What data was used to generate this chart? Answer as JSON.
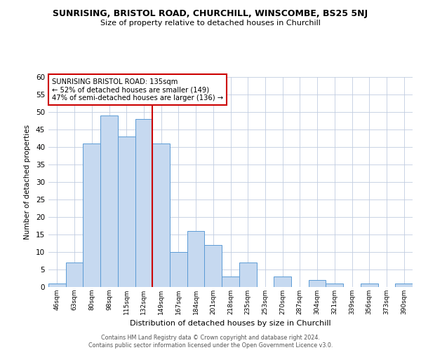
{
  "title": "SUNRISING, BRISTOL ROAD, CHURCHILL, WINSCOMBE, BS25 5NJ",
  "subtitle": "Size of property relative to detached houses in Churchill",
  "xlabel": "Distribution of detached houses by size in Churchill",
  "ylabel": "Number of detached properties",
  "bar_labels": [
    "46sqm",
    "63sqm",
    "80sqm",
    "98sqm",
    "115sqm",
    "132sqm",
    "149sqm",
    "167sqm",
    "184sqm",
    "201sqm",
    "218sqm",
    "235sqm",
    "253sqm",
    "270sqm",
    "287sqm",
    "304sqm",
    "321sqm",
    "339sqm",
    "356sqm",
    "373sqm",
    "390sqm"
  ],
  "bar_values": [
    1,
    7,
    41,
    49,
    43,
    48,
    41,
    10,
    16,
    12,
    3,
    7,
    0,
    3,
    0,
    2,
    1,
    0,
    1,
    0,
    1
  ],
  "bar_color": "#c6d9f0",
  "bar_edge_color": "#5b9bd5",
  "vline_x": 5.5,
  "vline_color": "#cc0000",
  "annotation_title": "SUNRISING BRISTOL ROAD: 135sqm",
  "annotation_line1": "← 52% of detached houses are smaller (149)",
  "annotation_line2": "47% of semi-detached houses are larger (136) →",
  "annotation_box_color": "#cc0000",
  "annotation_box_fill": "#ffffff",
  "ylim": [
    0,
    60
  ],
  "yticks": [
    0,
    5,
    10,
    15,
    20,
    25,
    30,
    35,
    40,
    45,
    50,
    55,
    60
  ],
  "footer_line1": "Contains HM Land Registry data © Crown copyright and database right 2024.",
  "footer_line2": "Contains public sector information licensed under the Open Government Licence v3.0.",
  "background_color": "#ffffff",
  "grid_color": "#c0cce0"
}
